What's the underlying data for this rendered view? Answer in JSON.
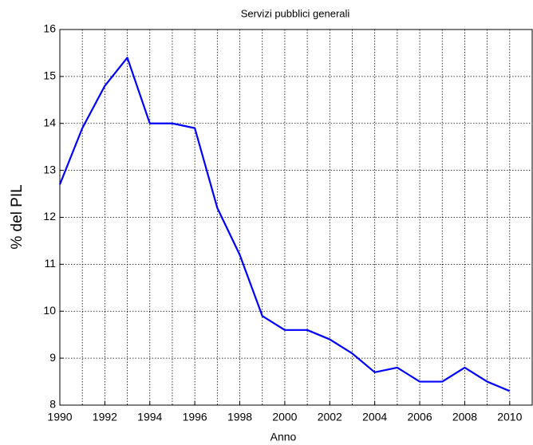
{
  "chart_data": {
    "type": "line",
    "title": "Servizi pubblici generali",
    "xlabel": "Anno",
    "ylabel": "% del PIL",
    "x": [
      1990,
      1991,
      1992,
      1993,
      1994,
      1995,
      1996,
      1997,
      1998,
      1999,
      2000,
      2001,
      2002,
      2003,
      2004,
      2005,
      2006,
      2007,
      2008,
      2009,
      2010
    ],
    "series": [
      {
        "name": "Servizi pubblici generali",
        "color": "#0000ff",
        "values": [
          12.7,
          13.9,
          14.8,
          15.4,
          14.0,
          14.0,
          13.9,
          12.2,
          11.2,
          9.9,
          9.6,
          9.6,
          9.4,
          9.1,
          8.7,
          8.8,
          8.5,
          8.5,
          8.8,
          8.5,
          8.3
        ]
      }
    ],
    "xlim": [
      1990,
      2011
    ],
    "xticks": [
      1990,
      1992,
      1994,
      1996,
      1998,
      2000,
      2002,
      2004,
      2006,
      2008,
      2010
    ],
    "xminorticks": [
      1991,
      1993,
      1995,
      1997,
      1999,
      2001,
      2003,
      2005,
      2007,
      2009
    ],
    "ylim": [
      8,
      16
    ],
    "yticks": [
      8,
      9,
      10,
      11,
      12,
      13,
      14,
      15,
      16
    ],
    "grid": true
  }
}
